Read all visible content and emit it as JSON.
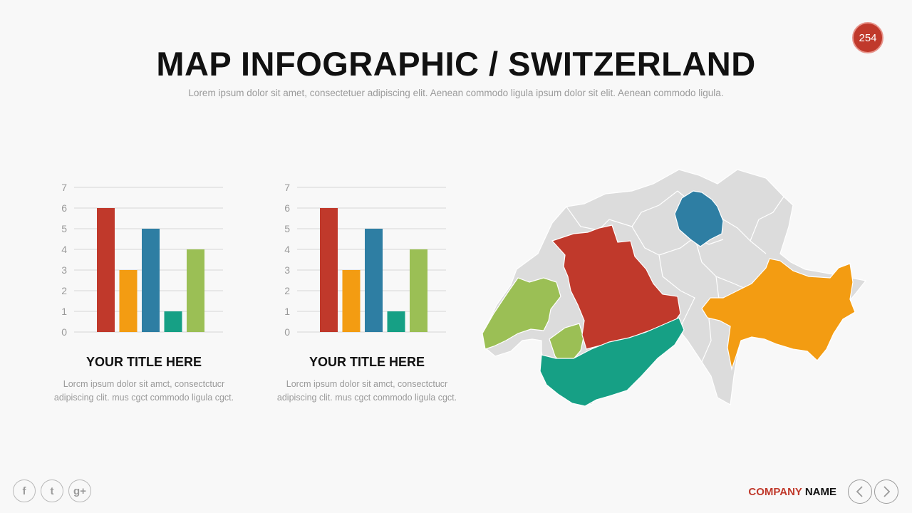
{
  "header": {
    "page_number": "254",
    "title": "MAP INFOGRAPHIC / SWITZERLAND",
    "subtitle": "Lorem ipsum dolor sit amet, consectetuer adipiscing elit. Aenean commodo ligula ipsum dolor sit elit. Aenean commodo ligula."
  },
  "charts": [
    {
      "title": "YOUR TITLE HERE",
      "caption_line1": "Lorcm ipsum dolor sit amct, consectctucr",
      "caption_line2": "adipiscing clit. mus cgct commodo ligula cgct."
    },
    {
      "title": "YOUR TITLE HERE",
      "caption_line1": "Lorcm ipsum dolor sit amct, consectctucr",
      "caption_line2": "adipiscing clit. mus cgct commodo ligula cgct."
    }
  ],
  "chart_data": [
    {
      "type": "bar",
      "values": [
        6,
        3,
        5,
        1,
        4
      ],
      "colors": [
        "#c0392b",
        "#f39c12",
        "#2e7ea3",
        "#16a085",
        "#9bbf55"
      ],
      "ylim": [
        0,
        7
      ],
      "yticks": [
        "0",
        "1",
        "2",
        "3",
        "4",
        "5",
        "6",
        "7"
      ],
      "grid": true
    },
    {
      "type": "bar",
      "values": [
        6,
        3,
        5,
        1,
        4
      ],
      "colors": [
        "#c0392b",
        "#f39c12",
        "#2e7ea3",
        "#16a085",
        "#9bbf55"
      ],
      "ylim": [
        0,
        7
      ],
      "yticks": [
        "0",
        "1",
        "2",
        "3",
        "4",
        "5",
        "6",
        "7"
      ],
      "grid": true
    }
  ],
  "map": {
    "regions": [
      {
        "name": "vaud",
        "color": "#9bbf55"
      },
      {
        "name": "bern",
        "color": "#c0392b"
      },
      {
        "name": "valais",
        "color": "#16a085"
      },
      {
        "name": "zurich",
        "color": "#2e7ea3"
      },
      {
        "name": "graubunden",
        "color": "#f39c12"
      }
    ],
    "base_color": "#dcdcdc"
  },
  "footer": {
    "social": [
      "f",
      "t",
      "g+"
    ],
    "company_part1": "COMPANY",
    "company_part2": "NAME"
  },
  "colors": {
    "accent": "#c0392b"
  }
}
